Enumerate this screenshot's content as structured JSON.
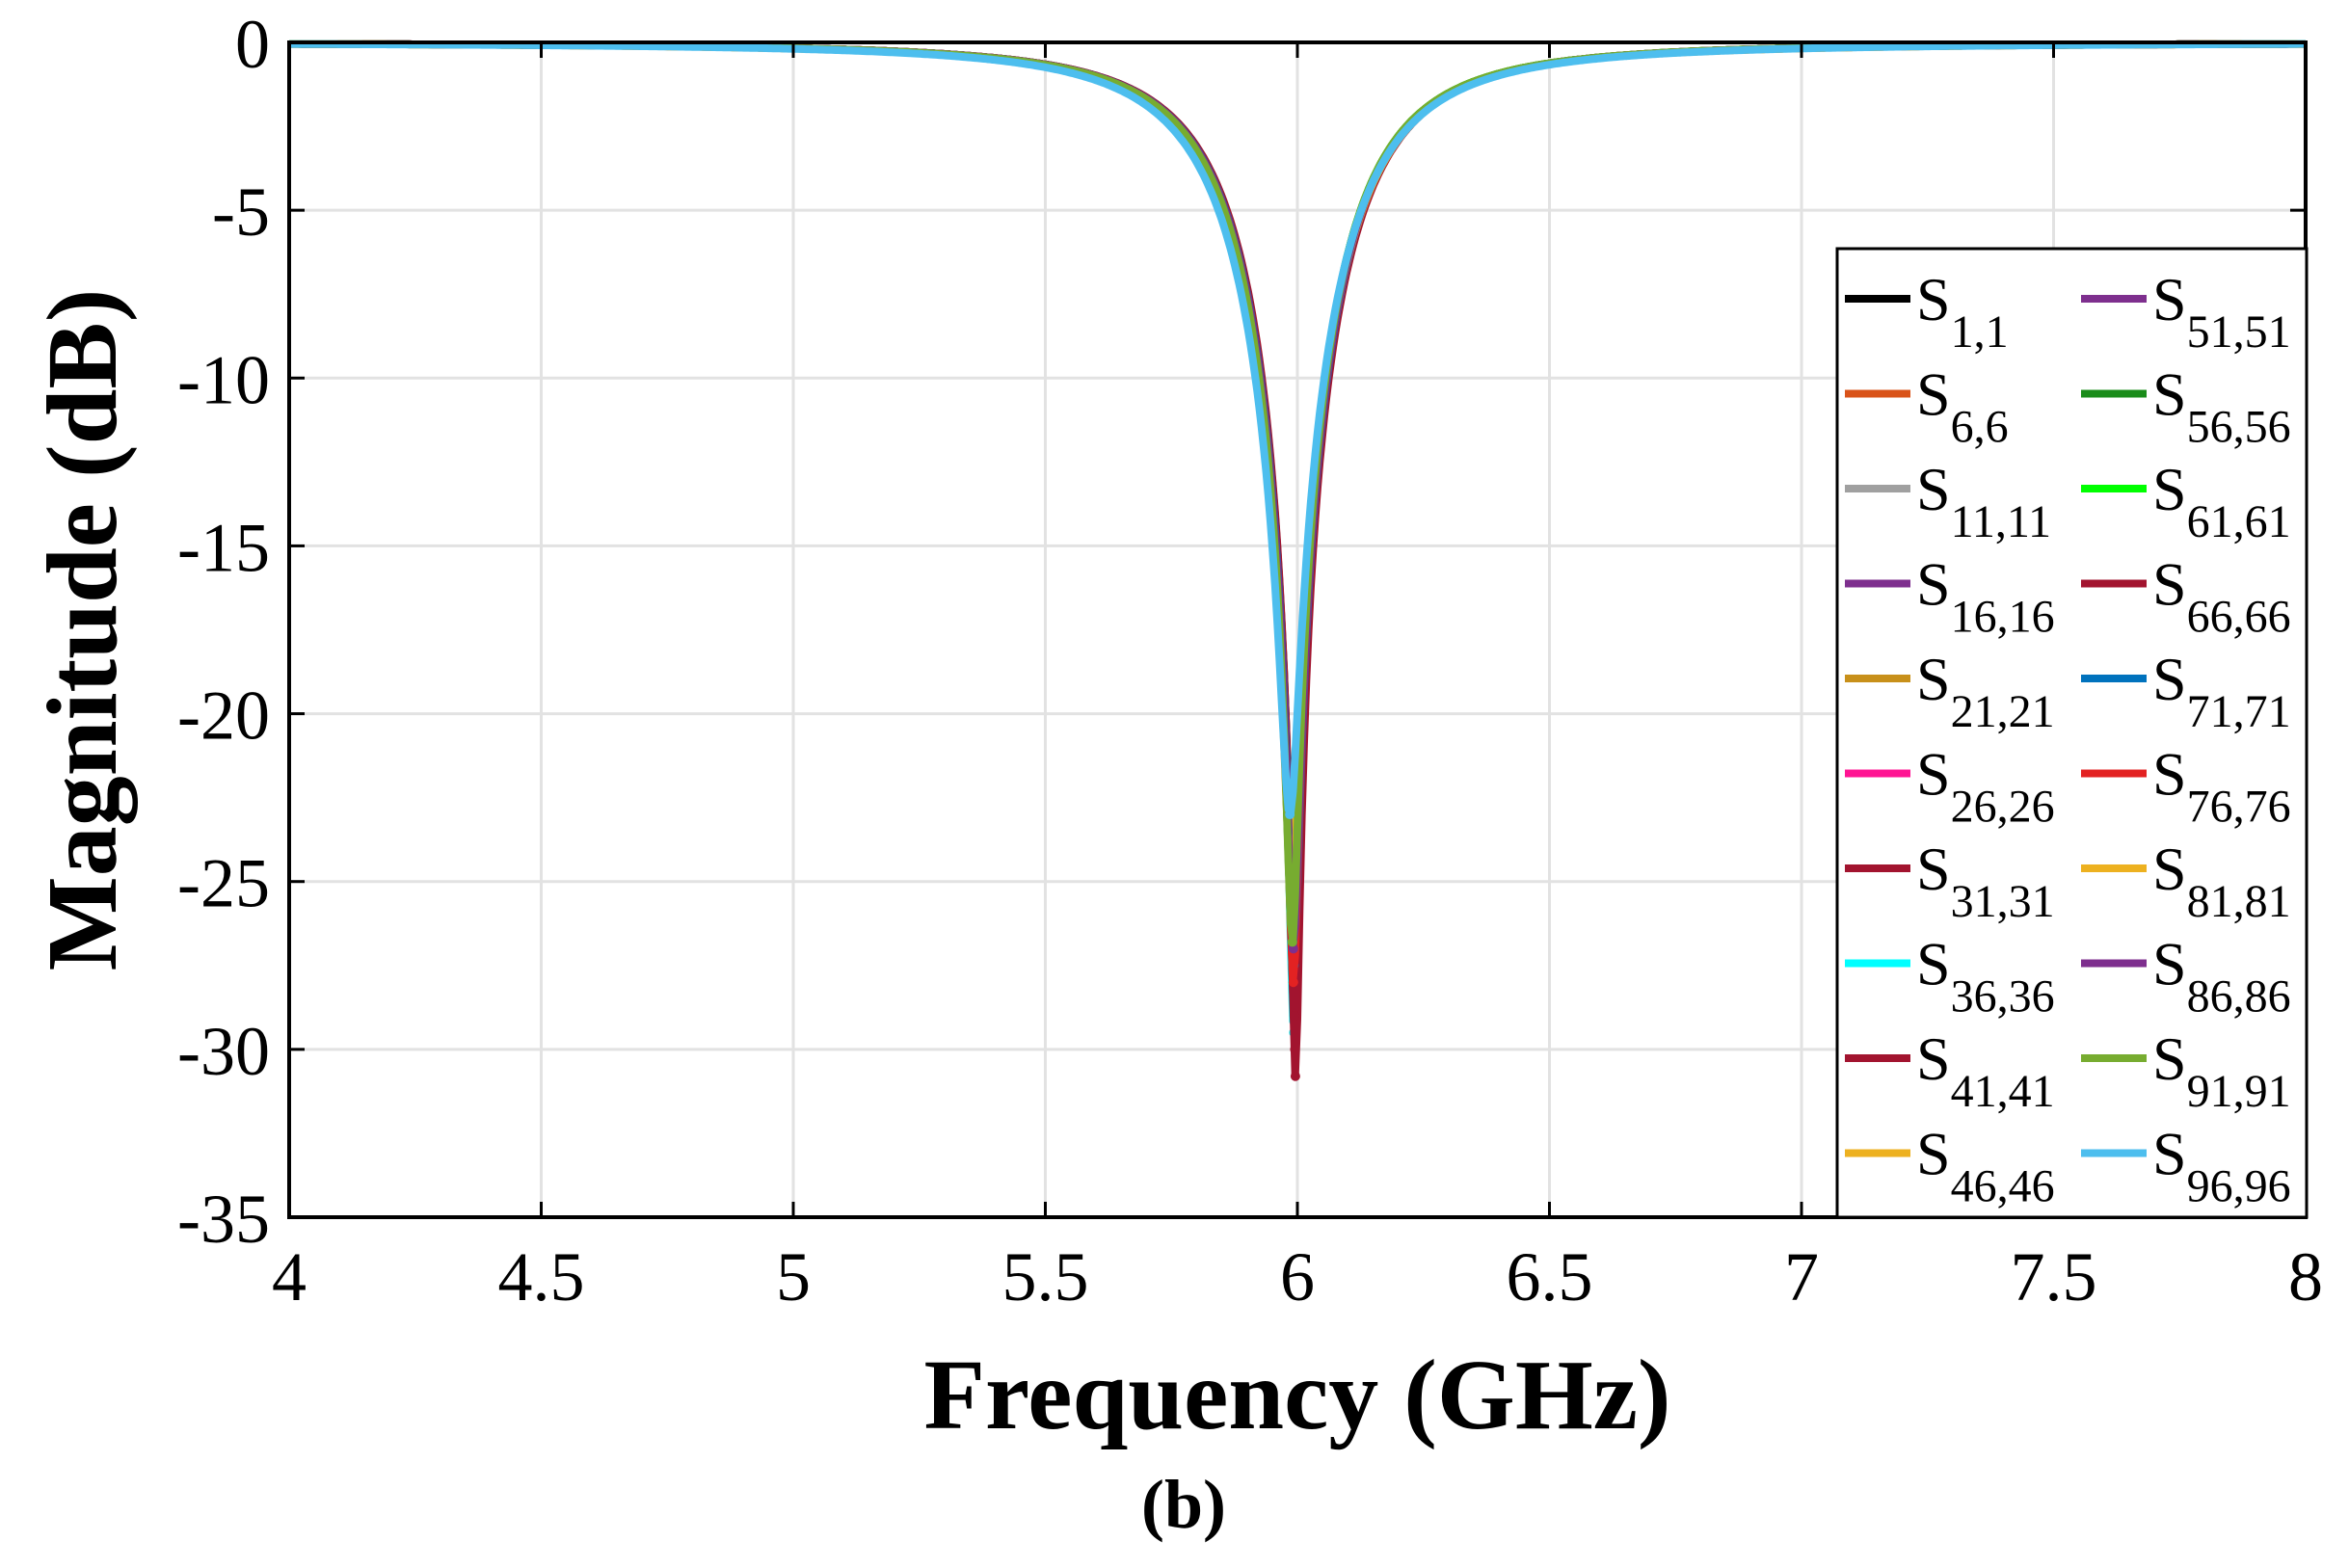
{
  "chart_data": {
    "type": "line",
    "title": "",
    "caption": "(b)",
    "xlabel": "Frequency (GHz)",
    "ylabel": "Magnitude (dB)",
    "xlim": [
      4,
      8
    ],
    "ylim": [
      -35,
      0
    ],
    "xticks": [
      4,
      4.5,
      5,
      5.5,
      6,
      6.5,
      7,
      7.5,
      8
    ],
    "xtick_labels": [
      "4",
      "4.5",
      "5",
      "5.5",
      "6",
      "6.5",
      "7",
      "7.5",
      "8"
    ],
    "yticks": [
      0,
      -5,
      -10,
      -15,
      -20,
      -25,
      -30,
      -35
    ],
    "ytick_labels": [
      "0",
      "-5",
      "-10",
      "-15",
      "-20",
      "-25",
      "-30",
      "-35"
    ],
    "grid": true,
    "legend_position": "right",
    "series": [
      {
        "name": "S",
        "sub": "1,1",
        "color": "#000000",
        "f0": 5.995,
        "min": -27.5,
        "bw": 0.2
      },
      {
        "name": "S",
        "sub": "6,6",
        "color": "#d95319",
        "f0": 5.99,
        "min": -24.0,
        "bw": 0.205
      },
      {
        "name": "S",
        "sub": "11,11",
        "color": "#a0a0a0",
        "f0": 5.99,
        "min": -26.0,
        "bw": 0.2
      },
      {
        "name": "S",
        "sub": "16,16",
        "color": "#7e2f8e",
        "f0": 5.992,
        "min": -28.0,
        "bw": 0.2
      },
      {
        "name": "S",
        "sub": "21,21",
        "color": "#c8901a",
        "f0": 5.988,
        "min": -25.0,
        "bw": 0.205
      },
      {
        "name": "S",
        "sub": "26,26",
        "color": "#ff1493",
        "f0": 5.993,
        "min": -28.5,
        "bw": 0.2
      },
      {
        "name": "S",
        "sub": "31,31",
        "color": "#a2142f",
        "f0": 5.995,
        "min": -30.0,
        "bw": 0.2
      },
      {
        "name": "S",
        "sub": "36,36",
        "color": "#00ffff",
        "f0": 5.993,
        "min": -29.5,
        "bw": 0.2
      },
      {
        "name": "S",
        "sub": "41,41",
        "color": "#a2142f",
        "f0": 5.996,
        "min": -30.8,
        "bw": 0.2
      },
      {
        "name": "S",
        "sub": "46,46",
        "color": "#edb120",
        "f0": 5.99,
        "min": -24.5,
        "bw": 0.205
      },
      {
        "name": "S",
        "sub": "51,51",
        "color": "#7e2f8e",
        "f0": 5.992,
        "min": -27.0,
        "bw": 0.2
      },
      {
        "name": "S",
        "sub": "56,56",
        "color": "#1a8c1a",
        "f0": 5.99,
        "min": -26.5,
        "bw": 0.2
      },
      {
        "name": "S",
        "sub": "61,61",
        "color": "#00ff00",
        "f0": 5.99,
        "min": -26.0,
        "bw": 0.2
      },
      {
        "name": "S",
        "sub": "66,66",
        "color": "#a2142f",
        "f0": 5.994,
        "min": -29.0,
        "bw": 0.2
      },
      {
        "name": "S",
        "sub": "71,71",
        "color": "#0072bd",
        "f0": 5.993,
        "min": -27.5,
        "bw": 0.2
      },
      {
        "name": "S",
        "sub": "76,76",
        "color": "#e32222",
        "f0": 5.992,
        "min": -28.0,
        "bw": 0.2
      },
      {
        "name": "S",
        "sub": "81,81",
        "color": "#edb120",
        "f0": 5.99,
        "min": -25.5,
        "bw": 0.205
      },
      {
        "name": "S",
        "sub": "86,86",
        "color": "#7e2f8e",
        "f0": 5.992,
        "min": -27.0,
        "bw": 0.2
      },
      {
        "name": "S",
        "sub": "91,91",
        "color": "#77ac30",
        "f0": 5.99,
        "min": -26.8,
        "bw": 0.2
      },
      {
        "name": "S",
        "sub": "96,96",
        "color": "#4dbeee",
        "f0": 5.985,
        "min": -23.0,
        "bw": 0.21
      }
    ]
  }
}
